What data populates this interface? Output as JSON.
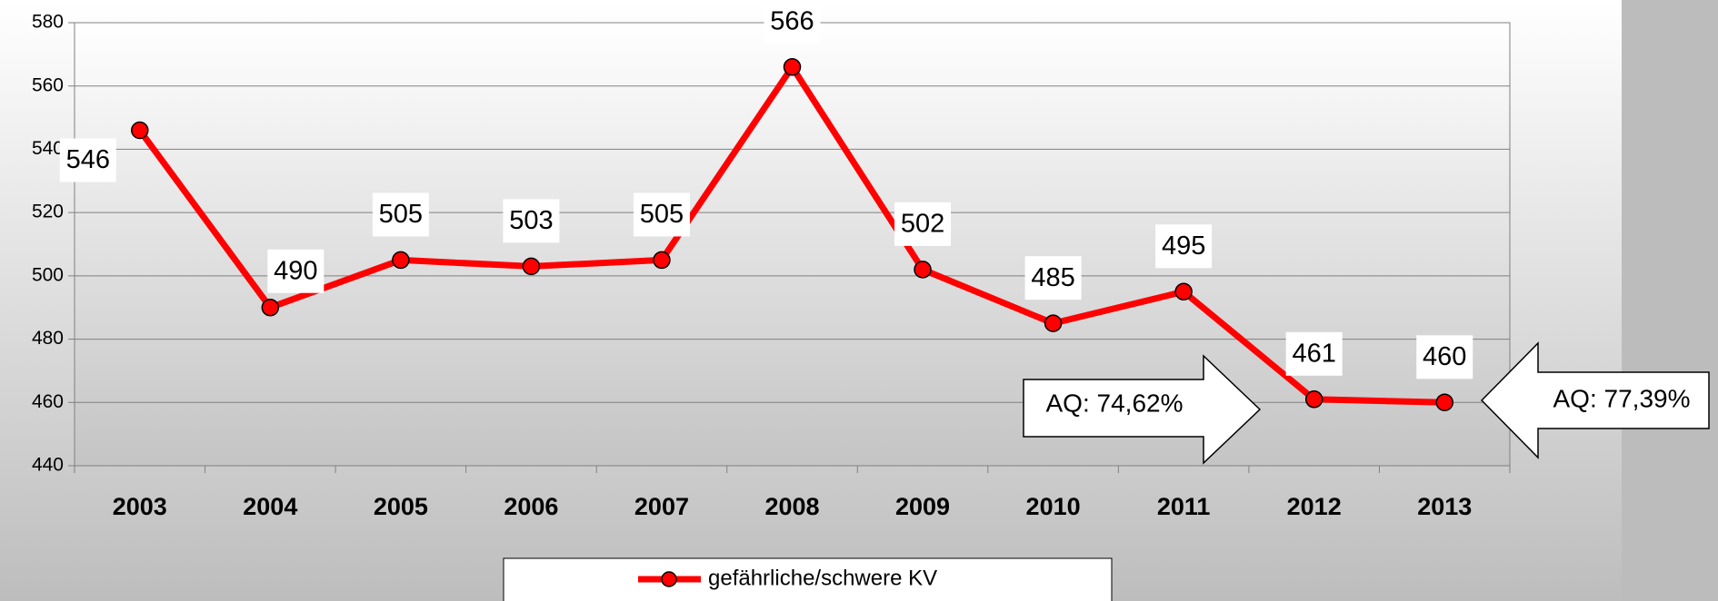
{
  "chart_data": {
    "type": "line",
    "categories": [
      "2003",
      "2004",
      "2005",
      "2006",
      "2007",
      "2008",
      "2009",
      "2010",
      "2011",
      "2012",
      "2013"
    ],
    "series": [
      {
        "name": "gefährliche/schwere KV",
        "color": "#ff0000",
        "values": [
          546,
          490,
          505,
          503,
          505,
          566,
          502,
          485,
          495,
          461,
          460
        ]
      }
    ],
    "ylim": [
      440,
      580
    ],
    "yticks": [
      440,
      460,
      480,
      500,
      520,
      540,
      560,
      580
    ],
    "grid": true,
    "annotations": [
      "AQ: 74,62%",
      "AQ: 77,39%"
    ],
    "legend": "bottom"
  }
}
